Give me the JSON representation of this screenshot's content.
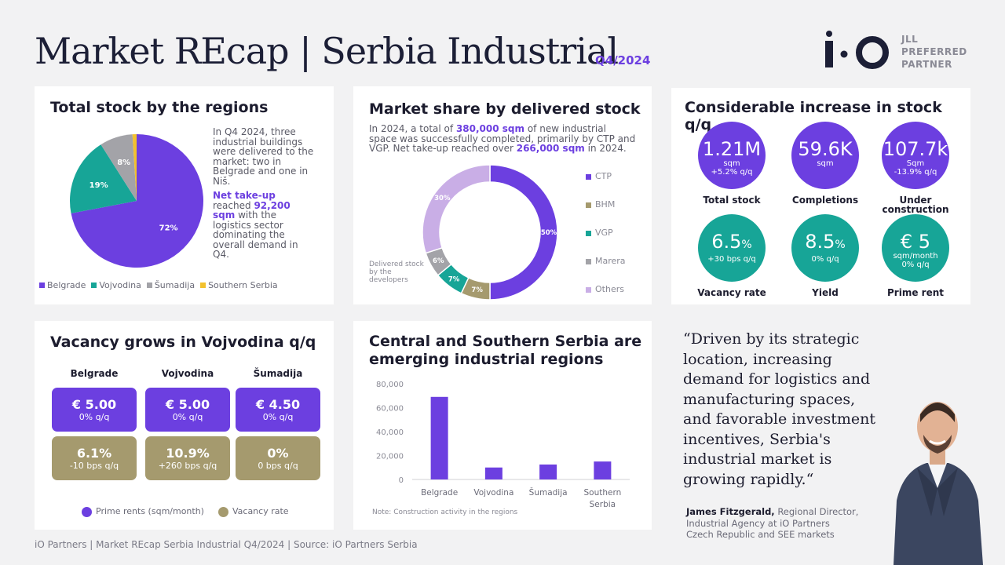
{
  "header": {
    "title": "Market REcap | Serbia Industrial",
    "period": "Q4/2024",
    "logo": "i·O",
    "partner_lines": [
      "JLL",
      "PREFERRED",
      "PARTNER"
    ]
  },
  "stock_card": {
    "title": "Total stock by the regions",
    "text1": "In Q4 2024, three industrial buildings were delivered to the market: two in Belgrade and one in Niš.",
    "text2_bold": "Net take-up",
    "text2_a": " reached ",
    "text2_value": "92,200 sqm",
    "text2_b": " with the logistics sector dominating the overall demand in Q4."
  },
  "share_card": {
    "title": "Market share by delivered stock",
    "text_a": "In 2024, a total of ",
    "text_v1": "380,000 sqm",
    "text_b": " of new industrial space was successfully completed, primarily by CTP and VGP. Net take-up reached over ",
    "text_v2": "266,000 sqm",
    "text_c": " in 2024.",
    "note": "Delivered stock by the developers"
  },
  "increase_card": {
    "title": "Considerable increase in stock q/q",
    "items": [
      {
        "value": "1.21M",
        "unit": "sqm",
        "change": "+5.2% q/q",
        "label": "Total stock",
        "color": "#6c3fe0"
      },
      {
        "value": "59.6K",
        "unit": "sqm",
        "change": "",
        "label": "Completions",
        "color": "#6c3fe0"
      },
      {
        "value": "107.7k",
        "unit": "Sqm",
        "change": "-13.9% q/q",
        "label": "Under construction",
        "color": "#6c3fe0"
      },
      {
        "value": "6.5",
        "suffix": "%",
        "unit": "+30 bps q/q",
        "change": "",
        "label": "Vacancy rate",
        "color": "#17a597"
      },
      {
        "value": "8.5",
        "suffix": "%",
        "unit": "0% q/q",
        "change": "",
        "label": "Yield",
        "color": "#17a597"
      },
      {
        "value": "€ 5",
        "unit": "sqm/month",
        "change": "0% q/q",
        "label": "Prime rent",
        "color": "#17a597"
      }
    ]
  },
  "vacancy_card": {
    "title": "Vacancy grows in Vojvodina q/q",
    "regions": [
      {
        "name": "Belgrade",
        "rent": "€ 5.00",
        "rent_change": "0% q/q",
        "vacancy": "6.1%",
        "vacancy_change": "-10 bps q/q"
      },
      {
        "name": "Vojvodina",
        "rent": "€ 5.00",
        "rent_change": "0% q/q",
        "vacancy": "10.9%",
        "vacancy_change": "+260 bps q/q"
      },
      {
        "name": "Šumadija",
        "rent": "€ 4.50",
        "rent_change": "0% q/q",
        "vacancy": "0%",
        "vacancy_change": "0 bps q/q"
      }
    ],
    "legend": [
      "Prime rents (sqm/month)",
      "Vacancy rate"
    ],
    "colors": [
      "#6c3fe0",
      "#a59a6e"
    ]
  },
  "regions_card": {
    "title_line1": "Central and Southern Serbia are",
    "title_line2": "emerging industrial regions",
    "note": "Note: Construction activity in the regions"
  },
  "quote": {
    "text": "“Driven by its strategic location, increasing demand for logistics and manufacturing spaces, and favorable investment incentives, Serbia's industrial market is growing rapidly.“",
    "author": "James Fitzgerald,",
    "role_line1": " Regional Director,",
    "role_line2": "Industrial Agency at iO Partners",
    "role_line3": "Czech Republic and SEE markets"
  },
  "footer": "iO Partners | Market REcap Serbia Industrial Q4/2024 | Source: iO Partners Serbia",
  "chart_data": [
    {
      "type": "pie",
      "categories": [
        "Belgrade",
        "Vojvodina",
        "Šumadija",
        "Southern Serbia"
      ],
      "values": [
        72,
        19,
        8,
        1
      ],
      "labels": [
        "72%",
        "19%",
        "8%",
        ""
      ],
      "colors": [
        "#6c3fe0",
        "#17a597",
        "#a3a3a8",
        "#f2c12e"
      ],
      "legend": "bottom"
    },
    {
      "type": "pie",
      "subtype": "donut",
      "categories": [
        "CTP",
        "BHM",
        "VGP",
        "Marera",
        "Others"
      ],
      "values": [
        50,
        7,
        7,
        6,
        30
      ],
      "labels": [
        "50%",
        "7%",
        "7%",
        "6%",
        "30%"
      ],
      "colors": [
        "#6c3fe0",
        "#a59a6e",
        "#17a597",
        "#a3a3a8",
        "#c9aee6"
      ],
      "legend": "right"
    },
    {
      "type": "bar",
      "categories": [
        "Belgrade",
        "Vojvodina",
        "Šumadija",
        "Southern Serbia"
      ],
      "values": [
        69000,
        10000,
        12500,
        15000
      ],
      "ylim": [
        0,
        80000
      ],
      "yticks": [
        "80,000",
        "60,000",
        "40,000",
        "20,000",
        "0"
      ],
      "ytick_values": [
        80000,
        60000,
        40000,
        20000,
        0
      ],
      "color": "#6c3fe0"
    }
  ]
}
